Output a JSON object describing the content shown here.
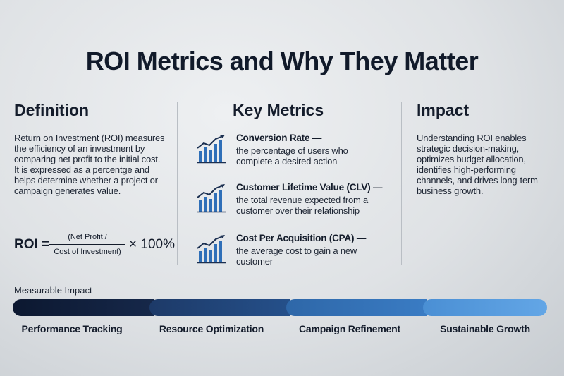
{
  "title": "ROI Metrics and Why They Matter",
  "definition": {
    "heading": "Definition",
    "text": "Return on Investment (ROI) measures the efficiency of an investment by comparing net profit to the initial cost. It is expressed as a percentge and helps determine whether a project or campaign generates value.",
    "formula": {
      "lhs": "ROI =",
      "numerator": "(Net Profit /",
      "denominator": "Cost of Investment)",
      "multiplier": "× 100%"
    }
  },
  "key_metrics": {
    "heading": "Key Metrics",
    "items": [
      {
        "name": "Conversion Rate —",
        "description": "the percentage of users who complete a desired action"
      },
      {
        "name": "Customer Lifetime Value (CLV) —",
        "description": "the total revenue expected from a customer over their relationship"
      },
      {
        "name": "Cost Per Acquisition (CPA) —",
        "description": "the average cost to gain a new customer"
      }
    ]
  },
  "impact": {
    "heading": "Impact",
    "text": "Understanding ROI enables strategic decision-making, optimizes budget allocation, identifies high-performing channels, and drives long-term business growth."
  },
  "progress": {
    "label": "Measurable Impact",
    "stages": [
      "Performance Tracking",
      "Resource Optimization",
      "Campaign Refinement",
      "Sustainable Growth"
    ]
  }
}
